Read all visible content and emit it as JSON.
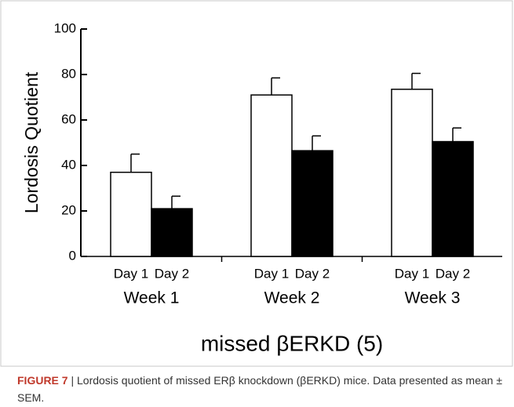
{
  "chart_data": {
    "type": "bar",
    "y_label": "Lordosis Quotient",
    "x_label": "missed βERKD (5)",
    "categories": [
      "Week 1",
      "Week 2",
      "Week 3"
    ],
    "series": [
      {
        "name": "Day 1",
        "color": "#ffffff",
        "values": [
          37,
          71,
          73.5
        ],
        "errors": [
          8,
          7.5,
          7
        ]
      },
      {
        "name": "Day 2",
        "color": "#000000",
        "values": [
          21,
          46.5,
          50.5
        ],
        "errors": [
          5.5,
          6.5,
          6
        ]
      }
    ],
    "ylim": [
      0,
      100
    ],
    "yticks": [
      0,
      20,
      40,
      60,
      80,
      100
    ],
    "grid": false
  },
  "caption": {
    "label": "FIGURE 7",
    "text": "| Lordosis quotient of missed ERβ knockdown (βERKD) mice. Data presented as mean ± SEM."
  }
}
